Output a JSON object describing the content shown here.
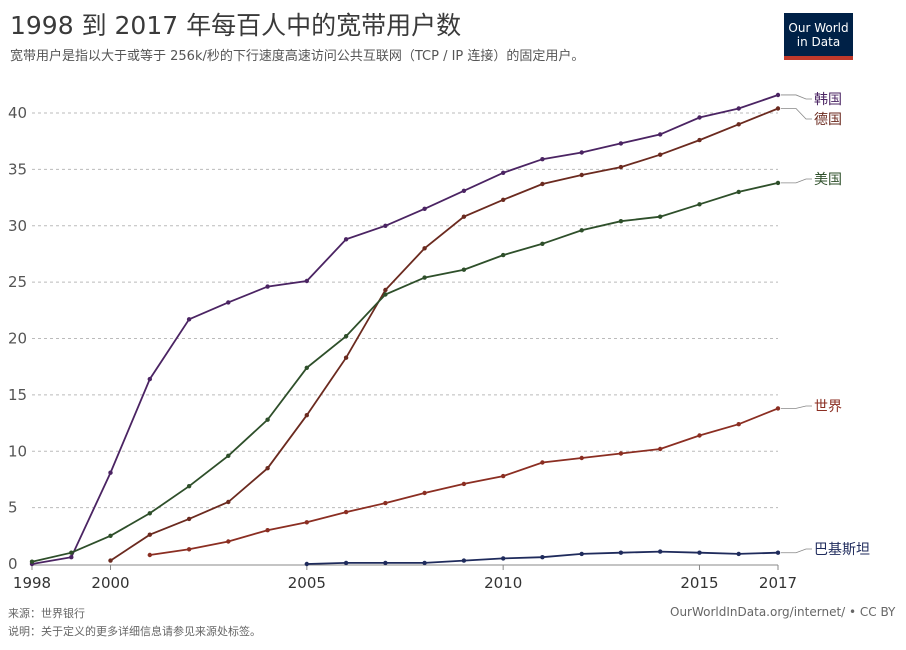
{
  "header": {
    "title": "1998 到 2017 年每百人中的宽带用户数",
    "subtitle": "宽带用户是指以大于或等于 256k/秒的下行速度高速访问公共互联网（TCP / IP 连接）的固定用户。",
    "logo_line1": "Our World",
    "logo_line2": "in Data"
  },
  "footer": {
    "source": "来源：世界银行",
    "note": "说明：关于定义的更多详细信息请参见来源处标签。",
    "url": "OurWorldInData.org/internet/ • CC BY"
  },
  "colors": {
    "korea": "#4b2463",
    "germany": "#6b2a1f",
    "usa": "#2e4f2a",
    "world": "#8b2e22",
    "pakistan": "#1f2b5c",
    "logo_bg": "#002147",
    "logo_bar": "#c0392b"
  },
  "chart_data": {
    "type": "line",
    "title": "1998 到 2017 年每百人中的宽带用户数",
    "xlim": [
      1998,
      2017
    ],
    "ylim": [
      0,
      42
    ],
    "x_ticks": [
      1998,
      2000,
      2005,
      2010,
      2015,
      2017
    ],
    "y_ticks": [
      0,
      5,
      10,
      15,
      20,
      25,
      30,
      35,
      40
    ],
    "grid": "horizontal dashed",
    "legend": "labels at right end of lines",
    "series": [
      {
        "name": "韩国",
        "color": "#4b2463",
        "x": [
          1998,
          1999,
          2000,
          2001,
          2002,
          2003,
          2004,
          2005,
          2006,
          2007,
          2008,
          2009,
          2010,
          2011,
          2012,
          2013,
          2014,
          2015,
          2016,
          2017
        ],
        "values": [
          0.0,
          0.6,
          8.1,
          16.4,
          21.7,
          23.2,
          24.6,
          25.1,
          28.8,
          30.0,
          31.5,
          33.1,
          34.7,
          35.9,
          36.5,
          37.3,
          38.1,
          39.6,
          40.4,
          41.6
        ]
      },
      {
        "name": "德国",
        "color": "#6b2a1f",
        "x": [
          2000,
          2001,
          2002,
          2003,
          2004,
          2005,
          2006,
          2007,
          2008,
          2009,
          2010,
          2011,
          2012,
          2013,
          2014,
          2015,
          2016,
          2017
        ],
        "values": [
          0.3,
          2.6,
          4.0,
          5.5,
          8.5,
          13.2,
          18.3,
          24.3,
          28.0,
          30.8,
          32.3,
          33.7,
          34.5,
          35.2,
          36.3,
          37.6,
          39.0,
          40.4
        ]
      },
      {
        "name": "美国",
        "color": "#2e4f2a",
        "x": [
          1998,
          1999,
          2000,
          2001,
          2002,
          2003,
          2004,
          2005,
          2006,
          2007,
          2008,
          2009,
          2010,
          2011,
          2012,
          2013,
          2014,
          2015,
          2016,
          2017
        ],
        "values": [
          0.2,
          1.0,
          2.5,
          4.5,
          6.9,
          9.6,
          12.8,
          17.4,
          20.2,
          23.9,
          25.4,
          26.1,
          27.4,
          28.4,
          29.6,
          30.4,
          30.8,
          31.9,
          33.0,
          33.8
        ]
      },
      {
        "name": "世界",
        "color": "#8b2e22",
        "x": [
          2001,
          2002,
          2003,
          2004,
          2005,
          2006,
          2007,
          2008,
          2009,
          2010,
          2011,
          2012,
          2013,
          2014,
          2015,
          2016,
          2017
        ],
        "values": [
          0.8,
          1.3,
          2.0,
          3.0,
          3.7,
          4.6,
          5.4,
          6.3,
          7.1,
          7.8,
          9.0,
          9.4,
          9.8,
          10.2,
          11.4,
          12.4,
          13.8
        ]
      },
      {
        "name": "巴基斯坦",
        "color": "#1f2b5c",
        "x": [
          2005,
          2006,
          2007,
          2008,
          2009,
          2010,
          2011,
          2012,
          2013,
          2014,
          2015,
          2016,
          2017
        ],
        "values": [
          0.0,
          0.1,
          0.1,
          0.1,
          0.3,
          0.5,
          0.6,
          0.9,
          1.0,
          1.1,
          1.0,
          0.9,
          1.0
        ]
      }
    ]
  }
}
